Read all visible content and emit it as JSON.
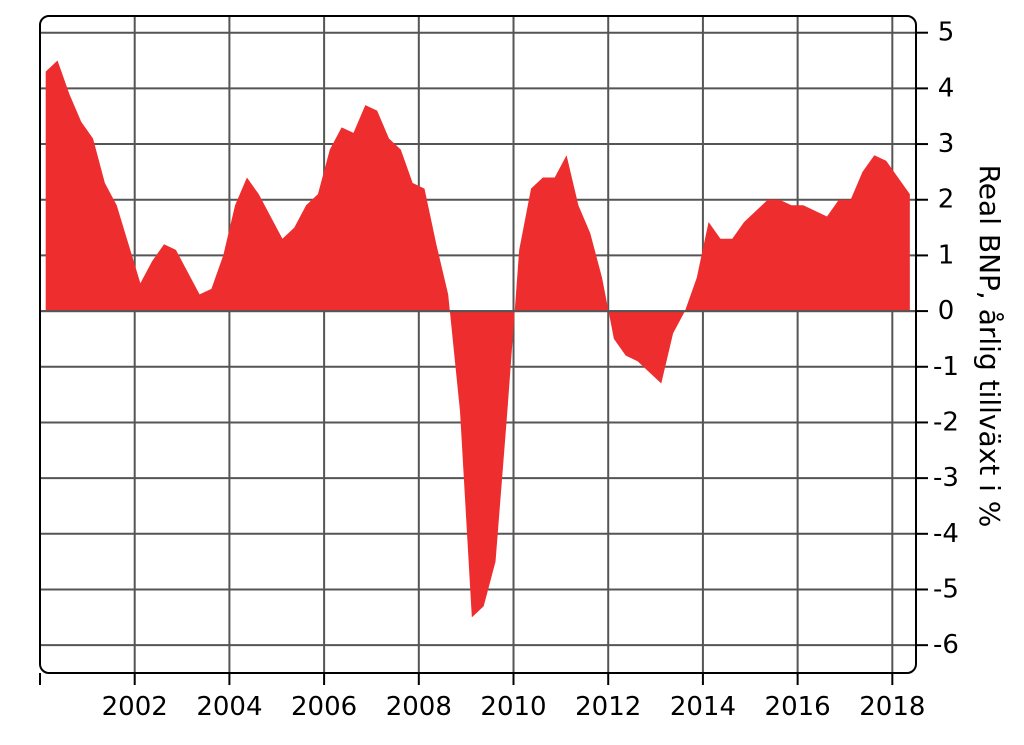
{
  "chart_data": {
    "type": "area",
    "title": "",
    "xlabel": "",
    "ylabel": "Real BNP, årlig tillväxt i %",
    "xlim": [
      2000,
      2018.5
    ],
    "ylim": [
      -6.5,
      5.3
    ],
    "x_ticks": [
      2002,
      2004,
      2006,
      2008,
      2010,
      2012,
      2014,
      2016,
      2018
    ],
    "x_tick_labels": [
      "2002",
      "2004",
      "2006",
      "2008",
      "2010",
      "2012",
      "2014",
      "2016",
      "2018"
    ],
    "y_ticks": [
      5,
      4,
      3,
      2,
      1,
      0,
      -1,
      -2,
      -3,
      -4,
      -5,
      -6
    ],
    "y_tick_labels": [
      "5",
      "4",
      "3",
      "2",
      "1",
      "0",
      "-1",
      "-2",
      "-3",
      "-4",
      "-5",
      "-6"
    ],
    "y_axis_side": "right",
    "grid": true,
    "colors": {
      "fill": "#ee2e2e",
      "grid": "#555555",
      "frame": "#000000"
    },
    "series": [
      {
        "x": [
          2000.12,
          2000.37,
          2000.62,
          2000.87,
          2001.12,
          2001.37,
          2001.62,
          2001.87,
          2002.12,
          2002.37,
          2002.62,
          2002.87,
          2003.12,
          2003.37,
          2003.62,
          2003.87,
          2004.12,
          2004.37,
          2004.62,
          2004.87,
          2005.12,
          2005.37,
          2005.62,
          2005.87,
          2006.12,
          2006.37,
          2006.62,
          2006.87,
          2007.12,
          2007.37,
          2007.62,
          2007.87,
          2008.12,
          2008.37,
          2008.62,
          2008.87,
          2009.12,
          2009.37,
          2009.62,
          2009.87,
          2010.12,
          2010.37,
          2010.62,
          2010.87,
          2011.12,
          2011.37,
          2011.62,
          2011.87,
          2012.12,
          2012.37,
          2012.62,
          2012.87,
          2013.12,
          2013.37,
          2013.62,
          2013.87,
          2014.12,
          2014.37,
          2014.62,
          2014.87,
          2015.12,
          2015.37,
          2015.62,
          2015.87,
          2016.12,
          2016.37,
          2016.62,
          2016.87,
          2017.12,
          2017.37,
          2017.62,
          2017.87,
          2018.12,
          2018.37
        ],
        "values": [
          4.3,
          4.5,
          3.9,
          3.4,
          3.1,
          2.3,
          1.9,
          1.2,
          0.5,
          0.9,
          1.2,
          1.1,
          0.7,
          0.3,
          0.4,
          1.0,
          1.9,
          2.4,
          2.1,
          1.7,
          1.3,
          1.5,
          1.9,
          2.1,
          2.9,
          3.3,
          3.2,
          3.7,
          3.6,
          3.1,
          2.9,
          2.3,
          2.2,
          1.2,
          0.3,
          -1.8,
          -5.5,
          -5.3,
          -4.5,
          -1.8,
          1.1,
          2.2,
          2.4,
          2.4,
          2.8,
          1.9,
          1.4,
          0.6,
          -0.5,
          -0.8,
          -0.9,
          -1.1,
          -1.3,
          -0.4,
          0.0,
          0.6,
          1.6,
          1.3,
          1.3,
          1.6,
          1.8,
          2.0,
          2.0,
          1.9,
          1.9,
          1.8,
          1.7,
          2.0,
          2.0,
          2.5,
          2.8,
          2.7,
          2.4,
          2.1
        ]
      }
    ]
  }
}
